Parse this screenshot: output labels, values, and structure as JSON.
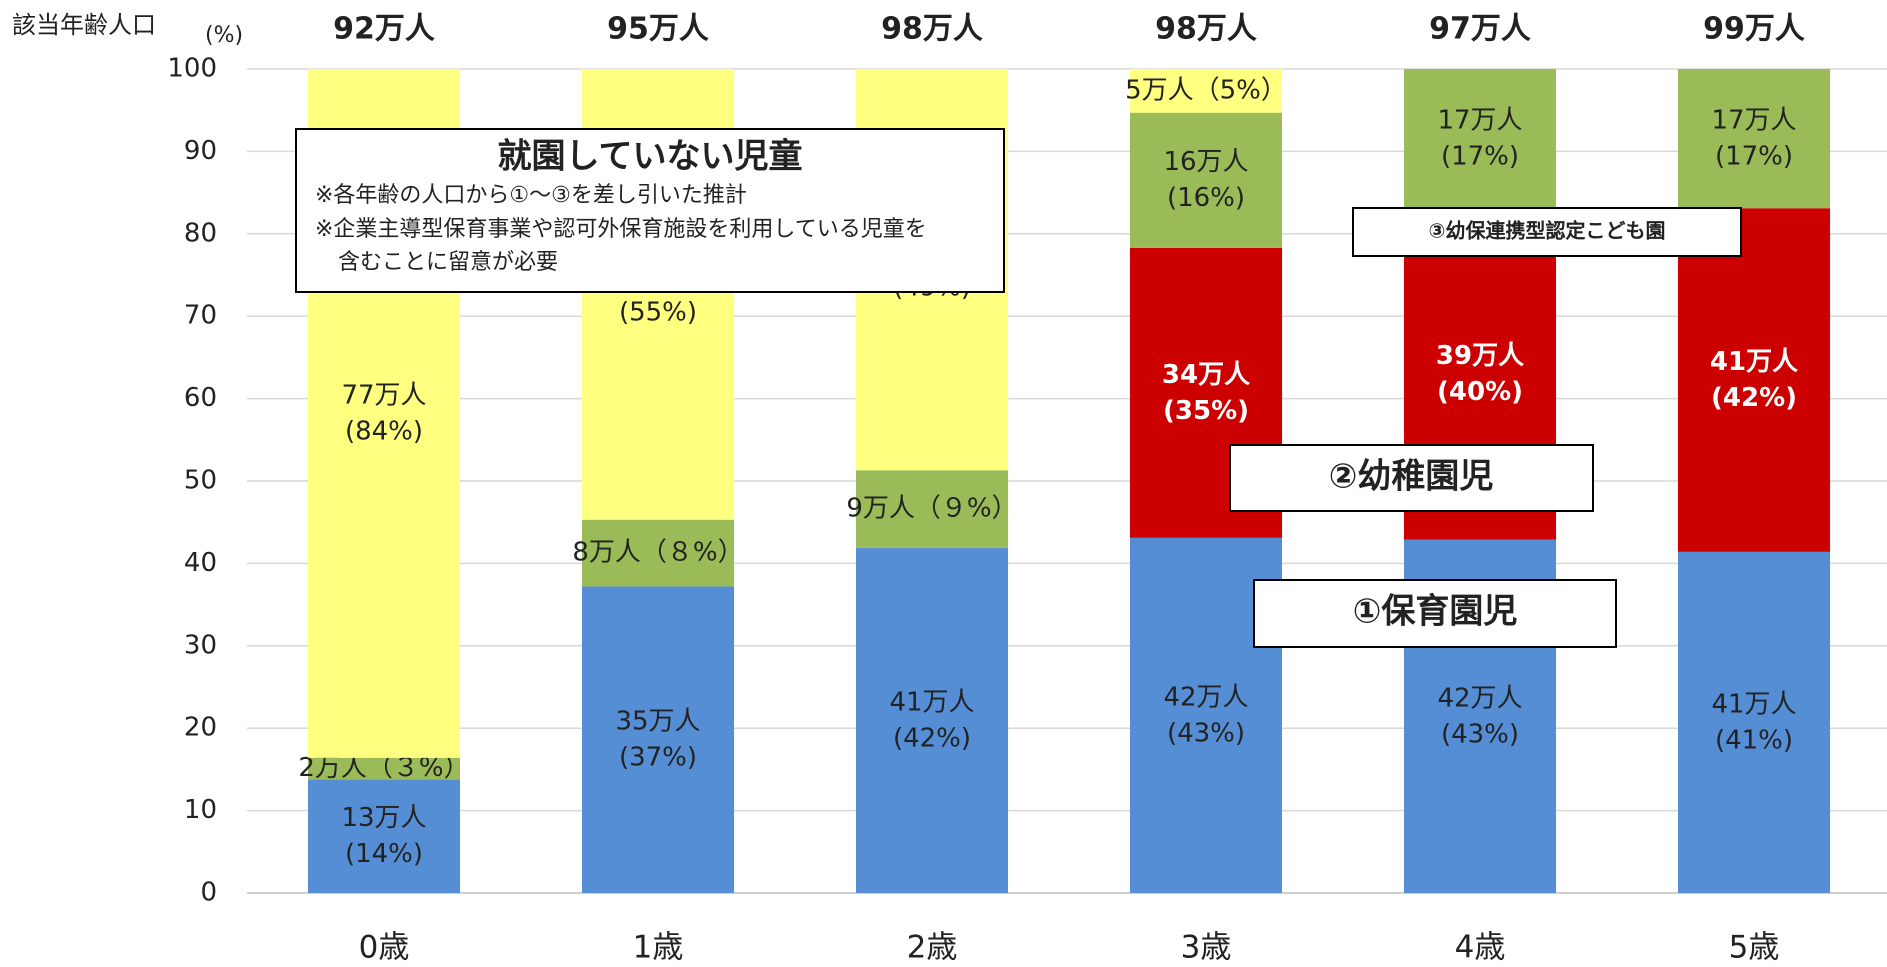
{
  "chart_data": {
    "type": "stacked_bar",
    "y_label": "該当年齢人口",
    "y_unit": "(%)",
    "categories": [
      "0歳",
      "1歳",
      "2歳",
      "3歳",
      "4歳",
      "5歳"
    ],
    "totals": [
      "92万人",
      "95万人",
      "98万人",
      "98万人",
      "97万人",
      "99万人"
    ],
    "series": [
      {
        "name": "①保育園児",
        "color": "#558ed5",
        "label_color": "#222222",
        "label_bold": false,
        "values": [
          13.8,
          37.2,
          41.9,
          43.1,
          42.9,
          41.4
        ],
        "value_labels": [
          "13万人\n(14%)",
          "35万人\n(37%)",
          "41万人\n(42%)",
          "42万人\n(43%)",
          "42万人\n(43%)",
          "41万人\n(41%)"
        ]
      },
      {
        "name": "②幼稚園児",
        "color": "#cc0000",
        "label_color": "#ffffff",
        "label_bold": true,
        "values": [
          null,
          null,
          null,
          35.2,
          40.2,
          41.7
        ],
        "value_labels": [
          null,
          null,
          null,
          "34万人\n(35%)",
          "39万人\n(40%)",
          "41万人\n(42%)"
        ]
      },
      {
        "name": "③幼保連携型認定こども園",
        "color": "#9bbb59",
        "label_color": "#222222",
        "label_bold": false,
        "values": [
          2.6,
          8.1,
          9.4,
          16.4,
          16.9,
          16.9
        ],
        "value_labels": [
          "2万人（３%）",
          "8万人（８%）",
          "9万人（９%）",
          "16万人\n(16%)",
          "17万人\n(17%)",
          "17万人\n(17%)"
        ]
      },
      {
        "name": "就園していない児童",
        "color": "#ffff80",
        "label_color": "#222222",
        "label_bold": false,
        "values": [
          83.6,
          54.7,
          48.7,
          5.3,
          null,
          null
        ],
        "value_labels": [
          "77万人\n(84%)",
          "52万人\n(55%)",
          "48万人\n(49%)",
          "5万人（5%）",
          null,
          null
        ]
      }
    ],
    "notes": [
      "※各年齢の人口から①～③を差し引いた推計",
      "※企業主導型保育事業や認可外保育施設を利用している児童を",
      "含むことに留意が必要"
    ],
    "ylim": [
      0,
      100
    ],
    "yticks": [
      0,
      10,
      20,
      30,
      40,
      50,
      60,
      70,
      80,
      90,
      100
    ],
    "grid": true
  }
}
